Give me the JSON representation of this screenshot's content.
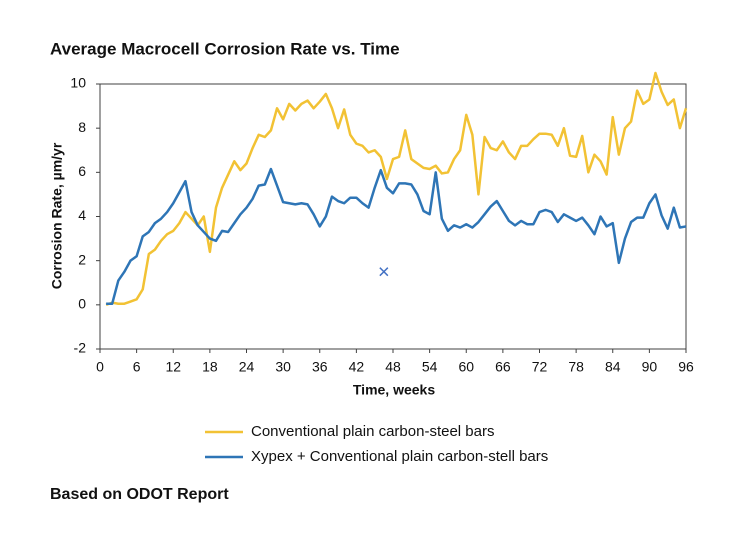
{
  "chart_data": {
    "type": "line",
    "title": "Average Macrocell Corrosion Rate vs. Time",
    "x_label": "Time, weeks",
    "y_label": "Corrosion Rate, µm/yr",
    "footnote": "Based on ODOT Report",
    "xlim": [
      0,
      96
    ],
    "xticks": [
      0,
      6,
      12,
      18,
      24,
      30,
      36,
      42,
      48,
      54,
      60,
      66,
      72,
      78,
      84,
      90,
      96
    ],
    "ylim": [
      -2,
      10
    ],
    "yticks": [
      -2,
      0,
      2,
      4,
      6,
      8,
      10
    ],
    "x": [
      1,
      2,
      3,
      4,
      5,
      6,
      7,
      8,
      9,
      10,
      11,
      12,
      13,
      14,
      15,
      16,
      17,
      18,
      19,
      20,
      21,
      22,
      23,
      24,
      25,
      26,
      27,
      28,
      29,
      30,
      31,
      32,
      33,
      34,
      35,
      36,
      37,
      38,
      39,
      40,
      41,
      42,
      43,
      44,
      45,
      46,
      47,
      48,
      49,
      50,
      51,
      52,
      53,
      54,
      55,
      56,
      57,
      58,
      59,
      60,
      61,
      62,
      63,
      64,
      65,
      66,
      67,
      68,
      69,
      70,
      71,
      72,
      73,
      74,
      75,
      76,
      77,
      78,
      79,
      80,
      81,
      82,
      83,
      84,
      85,
      86,
      87,
      88,
      89,
      90,
      91,
      92,
      93,
      94,
      95,
      96
    ],
    "series": [
      {
        "name": "Conventional plain carbon-steel bars",
        "color": "#f2c234",
        "values": [
          0,
          0.1,
          0.05,
          0.05,
          0.15,
          0.25,
          0.7,
          2.3,
          2.5,
          2.9,
          3.2,
          3.35,
          3.7,
          4.2,
          3.9,
          3.6,
          4.0,
          2.4,
          4.4,
          5.3,
          5.9,
          6.5,
          6.1,
          6.4,
          7.1,
          7.7,
          7.6,
          7.9,
          8.9,
          8.4,
          9.1,
          8.8,
          9.1,
          9.25,
          8.9,
          9.2,
          9.55,
          8.9,
          8.0,
          8.85,
          7.7,
          7.3,
          7.2,
          6.9,
          7.0,
          6.7,
          5.7,
          6.6,
          6.7,
          7.9,
          6.6,
          6.4,
          6.2,
          6.15,
          6.3,
          5.95,
          6.0,
          6.6,
          7.0,
          8.6,
          7.7,
          5.0,
          7.6,
          7.1,
          7.0,
          7.4,
          6.9,
          6.6,
          7.2,
          7.2,
          7.5,
          7.75,
          7.75,
          7.7,
          7.2,
          8.0,
          6.75,
          6.7,
          7.65,
          6.0,
          6.8,
          6.5,
          5.9,
          8.5,
          6.8,
          8.0,
          8.3,
          9.7,
          9.1,
          9.3,
          10.5,
          9.65,
          9.05,
          9.3,
          8.0,
          8.9
        ]
      },
      {
        "name": "Xypex + Conventional plain carbon-stell bars",
        "color": "#2e75b6",
        "values": [
          0.05,
          0.05,
          1.1,
          1.5,
          2.0,
          2.2,
          3.1,
          3.3,
          3.7,
          3.9,
          4.2,
          4.6,
          5.1,
          5.6,
          4.2,
          3.6,
          3.3,
          3.0,
          2.9,
          3.35,
          3.3,
          3.7,
          4.1,
          4.4,
          4.8,
          5.4,
          5.45,
          6.15,
          5.4,
          4.65,
          4.6,
          4.55,
          4.6,
          4.55,
          4.1,
          3.55,
          4.0,
          4.9,
          4.7,
          4.6,
          4.85,
          4.85,
          4.6,
          4.4,
          5.3,
          6.1,
          5.3,
          5.05,
          5.5,
          5.5,
          5.45,
          5.0,
          4.25,
          4.1,
          6.0,
          3.9,
          3.35,
          3.6,
          3.5,
          3.65,
          3.5,
          3.75,
          4.1,
          4.45,
          4.7,
          4.25,
          3.8,
          3.6,
          3.8,
          3.65,
          3.65,
          4.2,
          4.3,
          4.2,
          3.75,
          4.1,
          3.95,
          3.8,
          3.95,
          3.6,
          3.2,
          4.0,
          3.55,
          3.7,
          1.9,
          3.0,
          3.75,
          3.95,
          3.95,
          4.6,
          5.0,
          4.05,
          3.45,
          4.4,
          3.5,
          3.55
        ]
      }
    ],
    "extra_points": {
      "x": [
        46.5
      ],
      "y": [
        1.5
      ],
      "color": "#4472c4"
    }
  }
}
